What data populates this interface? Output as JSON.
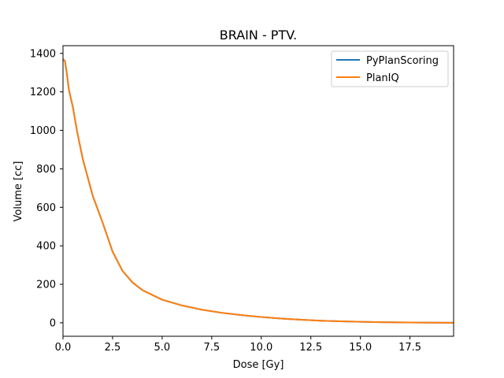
{
  "chart_data": {
    "type": "line",
    "title": "BRAIN - PTV.",
    "xlabel": "Dose [Gy]",
    "ylabel": "Volume [cc]",
    "xlim": [
      0,
      19.7
    ],
    "ylim": [
      -70,
      1440
    ],
    "xticks": [
      0.0,
      2.5,
      5.0,
      7.5,
      10.0,
      12.5,
      15.0,
      17.5
    ],
    "xtick_labels": [
      "0.0",
      "2.5",
      "5.0",
      "7.5",
      "10.0",
      "12.5",
      "15.0",
      "17.5"
    ],
    "yticks": [
      0,
      200,
      400,
      600,
      800,
      1000,
      1200,
      1400
    ],
    "ytick_labels": [
      "0",
      "200",
      "400",
      "600",
      "800",
      "1000",
      "1200",
      "1400"
    ],
    "grid": false,
    "legend_position": "top-right",
    "series": [
      {
        "name": "PyPlanScoring",
        "color": "#1f77b4",
        "x": [
          0,
          0.1,
          0.2,
          0.3,
          0.5,
          0.7,
          1.0,
          1.5,
          2.0,
          2.5,
          3.0,
          3.5,
          4.0,
          5.0,
          6.0,
          7.0,
          8.0,
          9.0,
          10.0,
          11.0,
          12.0,
          13.0,
          14.0,
          15.0,
          16.0,
          17.0,
          18.0,
          19.0,
          19.7
        ],
        "y": [
          1370,
          1360,
          1290,
          1210,
          1120,
          1000,
          850,
          660,
          520,
          370,
          270,
          210,
          170,
          120,
          90,
          68,
          52,
          40,
          30,
          22,
          16,
          11,
          8,
          5,
          3,
          2,
          1,
          0.5,
          0
        ]
      },
      {
        "name": "PlanIQ",
        "color": "#ff7f0e",
        "x": [
          0,
          0.1,
          0.2,
          0.3,
          0.5,
          0.7,
          1.0,
          1.5,
          2.0,
          2.5,
          3.0,
          3.5,
          4.0,
          5.0,
          6.0,
          7.0,
          8.0,
          9.0,
          10.0,
          11.0,
          12.0,
          13.0,
          14.0,
          15.0,
          16.0,
          17.0,
          18.0,
          19.0,
          19.7
        ],
        "y": [
          1370,
          1360,
          1290,
          1210,
          1120,
          1000,
          850,
          660,
          520,
          370,
          270,
          210,
          170,
          120,
          90,
          68,
          52,
          40,
          30,
          22,
          16,
          11,
          8,
          5,
          3,
          2,
          1,
          0.5,
          0
        ]
      }
    ]
  }
}
